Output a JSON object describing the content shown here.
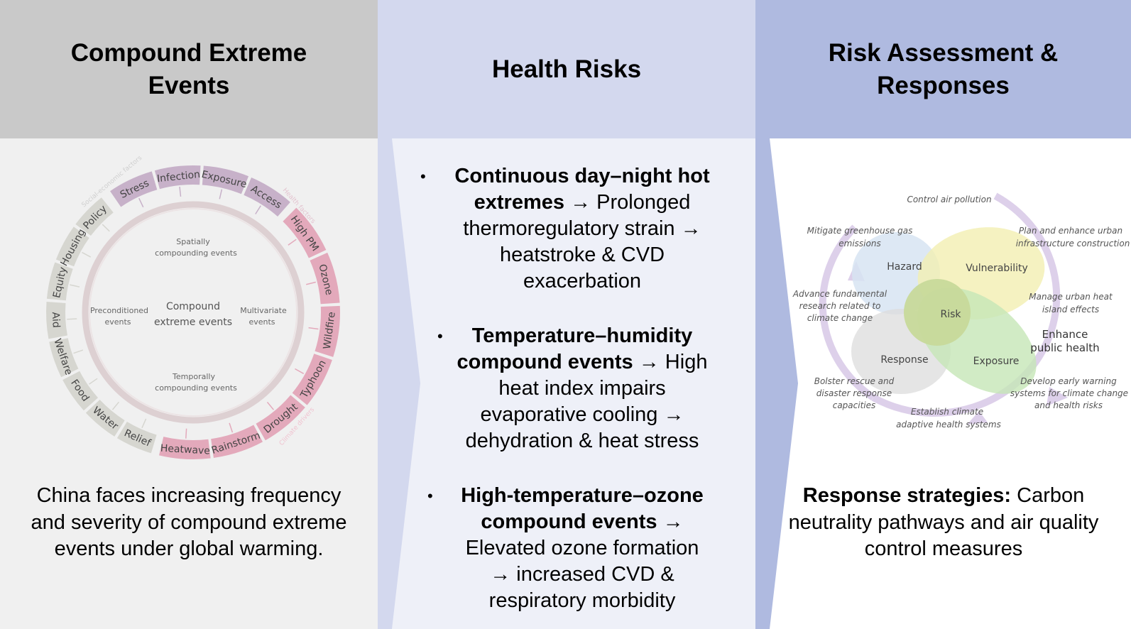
{
  "columns": {
    "events": {
      "header_line1": "Compound Extreme",
      "header_line2": "Events",
      "caption": "China faces increasing frequency and severity of compound extreme events under global warming.",
      "wheel": {
        "center_line1": "Compound",
        "center_line2": "extreme events",
        "spatial_line1": "Spatially",
        "spatial_line2": "compounding events",
        "temporal_line1": "Temporally",
        "temporal_line2": "compounding events",
        "precond_line1": "Preconditioned",
        "precond_line2": "events",
        "multi_line1": "Multivariate",
        "multi_line2": "events",
        "arc_social": "Social-economic factors",
        "arc_health": "Health factors",
        "arc_climate": "Climate drivers",
        "social_segments": [
          "Policy",
          "Housing",
          "Equity",
          "Aid",
          "Welfare",
          "Food",
          "Water",
          "Relief"
        ],
        "health_segments": [
          "Stress",
          "Infection",
          "Exposure",
          "Access"
        ],
        "climate_segments": [
          "High PM",
          "Ozone",
          "Wildfire",
          "Typhoon",
          "Drought",
          "Rainstorm",
          "Heatwave"
        ]
      }
    },
    "health": {
      "header": "Health Risks",
      "bullets": [
        {
          "dot": "•",
          "bold_lines": [
            "Continuous day–night hot",
            "extremes"
          ],
          "tail_first": " → Prolonged",
          "lines": [
            "thermoregulatory strain →",
            "heatstroke & CVD",
            "exacerbation"
          ]
        },
        {
          "dot": "•",
          "bold_lines": [
            "Temperature–humidity",
            "compound events"
          ],
          "tail_first": " → High",
          "lines": [
            "heat index impairs",
            "evaporative cooling →",
            "dehydration & heat stress"
          ]
        },
        {
          "dot": "•",
          "bold_lines": [
            "High-temperature–ozone",
            "compound events"
          ],
          "tail_first": " →",
          "lines": [
            "Elevated ozone formation",
            "→ increased CVD &",
            "respiratory morbidity"
          ]
        }
      ]
    },
    "responses": {
      "header_line1": "Risk Assessment &",
      "header_line2": "Responses",
      "strategy_label": "Response strategies:",
      "strategy_text": " Carbon neutrality pathways and air quality control measures",
      "venn": {
        "hazard": "Hazard",
        "vulnerability": "Vulnerability",
        "risk": "Risk",
        "response": "Response",
        "exposure": "Exposure",
        "control_air": "Control air pollution",
        "mitigate_line1": "Mitigate greenhouse gas",
        "mitigate_line2": "emissions",
        "plan_line1": "Plan and enhance urban",
        "plan_line2": "infrastructure construction",
        "advance_line1": "Advance fundamental",
        "advance_line2": "research related to",
        "advance_line3": "climate change",
        "manage_line1": "Manage urban heat",
        "manage_line2": "island effects",
        "enhance_line1": "Enhance",
        "enhance_line2": "public health",
        "bolster_line1": "Bolster rescue and",
        "bolster_line2": "disaster response",
        "bolster_line3": "capacities",
        "develop_line1": "Develop early warning",
        "develop_line2": "systems for climate change",
        "develop_line3": "and health risks",
        "establish_line1": "Establish climate",
        "establish_line2": "adaptive health systems"
      }
    }
  },
  "colors": {
    "social_ring": "#d6d6d0",
    "health_ring": "#c7b1c9",
    "climate_ring": "#e3a9bb",
    "hazard": "#d7e4f2",
    "vulnerability": "#f3efb2",
    "response": "#dcdcdc",
    "exposure": "#c6e6b6",
    "risk": "#c7d99a",
    "cycle": "#ddd0ea"
  }
}
